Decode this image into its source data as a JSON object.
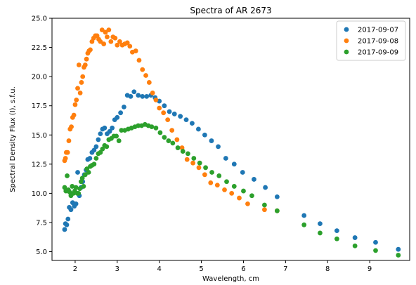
{
  "chart_data": {
    "type": "scatter",
    "title": "Spectra of AR 2673",
    "xlabel": "Wavelength, cm",
    "ylabel": "Spectral Density Flux (I), s.f.u.",
    "xlim": [
      1.45,
      9.95
    ],
    "ylim": [
      4.25,
      25.0
    ],
    "xticks": [
      2,
      3,
      4,
      5,
      6,
      7,
      8,
      9
    ],
    "yticks": [
      5.0,
      7.5,
      10.0,
      12.5,
      15.0,
      17.5,
      20.0,
      22.5,
      25.0
    ],
    "ytick_labels": [
      "5.0",
      "7.5",
      "10.0",
      "12.5",
      "15.0",
      "17.5",
      "20.0",
      "22.5",
      "25.0"
    ],
    "xtick_labels": [
      "2",
      "3",
      "4",
      "5",
      "6",
      "7",
      "8",
      "9"
    ],
    "grid": false,
    "legend_position": "top-right",
    "series": [
      {
        "name": "2017-09-07",
        "color": "#1f77b4",
        "x": [
          1.75,
          1.77,
          1.8,
          1.83,
          1.86,
          1.9,
          1.94,
          1.98,
          2.02,
          2.06,
          2.1,
          2.14,
          2.18,
          2.22,
          2.26,
          2.3,
          2.35,
          2.4,
          2.45,
          2.5,
          2.55,
          2.6,
          2.65,
          2.7,
          2.76,
          2.82,
          2.88,
          2.94,
          3.0,
          3.08,
          3.16,
          3.24,
          3.32,
          3.4,
          3.5,
          3.6,
          3.7,
          3.8,
          3.9,
          4.0,
          4.12,
          4.24,
          4.36,
          4.5,
          4.64,
          4.78,
          4.93,
          5.08,
          5.24,
          5.4,
          5.58,
          5.78,
          5.98,
          6.25,
          6.52,
          6.8,
          7.44,
          7.82,
          8.22,
          8.65,
          9.14,
          9.68
        ],
        "y": [
          6.9,
          7.4,
          7.3,
          7.8,
          8.8,
          8.6,
          9.2,
          8.9,
          9.1,
          11.8,
          9.8,
          10.5,
          11.0,
          11.6,
          12.0,
          12.9,
          13.0,
          13.5,
          13.7,
          14.0,
          14.6,
          15.1,
          15.5,
          15.6,
          15.1,
          15.3,
          15.6,
          16.3,
          16.5,
          16.9,
          17.4,
          18.4,
          18.3,
          18.7,
          18.4,
          18.3,
          18.3,
          18.4,
          18.2,
          17.9,
          17.5,
          17.0,
          16.8,
          16.6,
          16.3,
          16.0,
          15.5,
          15.0,
          14.5,
          14.0,
          13.0,
          12.5,
          11.8,
          11.2,
          10.5,
          9.7,
          8.1,
          7.4,
          6.8,
          6.2,
          5.8,
          5.2
        ]
      },
      {
        "name": "2017-09-08",
        "color": "#ff7f0e",
        "x": [
          1.75,
          1.77,
          1.79,
          1.82,
          1.85,
          1.88,
          1.91,
          1.94,
          1.97,
          2.0,
          2.03,
          2.06,
          2.09,
          2.12,
          2.15,
          2.18,
          2.21,
          2.24,
          2.27,
          2.3,
          2.33,
          2.36,
          2.4,
          2.44,
          2.48,
          2.52,
          2.56,
          2.6,
          2.64,
          2.68,
          2.72,
          2.76,
          2.8,
          2.85,
          2.9,
          2.95,
          3.0,
          3.06,
          3.12,
          3.18,
          3.24,
          3.3,
          3.36,
          3.44,
          3.52,
          3.6,
          3.68,
          3.76,
          3.84,
          3.92,
          4.0,
          4.1,
          4.2,
          4.3,
          4.42,
          4.54,
          4.66,
          4.8,
          4.94,
          5.08,
          5.22,
          5.38,
          5.55,
          5.72,
          5.9,
          6.1,
          6.5,
          6.8
        ],
        "y": [
          12.8,
          13.0,
          13.5,
          13.5,
          14.5,
          15.5,
          15.7,
          16.5,
          16.7,
          17.6,
          18.0,
          19.0,
          21.0,
          18.6,
          19.5,
          20.0,
          20.8,
          21.0,
          21.5,
          22.0,
          22.2,
          22.3,
          23.0,
          23.3,
          23.5,
          23.5,
          23.2,
          23.0,
          24.0,
          22.8,
          23.8,
          23.4,
          24.0,
          23.0,
          23.4,
          23.3,
          22.7,
          23.0,
          22.7,
          22.8,
          22.9,
          22.6,
          22.1,
          22.2,
          21.4,
          20.6,
          20.1,
          19.5,
          18.6,
          18.0,
          17.3,
          16.9,
          16.3,
          15.4,
          14.6,
          13.9,
          12.9,
          12.6,
          12.2,
          11.6,
          10.9,
          10.7,
          10.3,
          10.0,
          9.6,
          9.1,
          8.6,
          8.5
        ]
      },
      {
        "name": "2017-09-09",
        "color": "#2ca02c",
        "x": [
          1.75,
          1.78,
          1.81,
          1.84,
          1.87,
          1.9,
          1.93,
          1.96,
          1.99,
          2.02,
          2.05,
          2.08,
          2.11,
          2.14,
          2.17,
          2.2,
          2.24,
          2.28,
          2.32,
          2.36,
          2.4,
          2.45,
          2.5,
          2.55,
          2.6,
          2.65,
          2.7,
          2.75,
          2.8,
          2.86,
          2.92,
          2.98,
          3.04,
          3.1,
          3.18,
          3.26,
          3.34,
          3.42,
          3.5,
          3.58,
          3.66,
          3.74,
          3.82,
          3.92,
          4.02,
          4.12,
          4.22,
          4.32,
          4.44,
          4.56,
          4.68,
          4.82,
          4.96,
          5.1,
          5.25,
          5.42,
          5.6,
          5.78,
          6.0,
          6.2,
          6.5,
          6.8,
          7.44,
          7.82,
          8.22,
          8.65,
          9.14,
          9.68
        ],
        "y": [
          10.5,
          10.2,
          11.5,
          10.3,
          10.1,
          9.8,
          10.6,
          10.0,
          10.2,
          10.5,
          10.0,
          10.0,
          10.4,
          11.0,
          11.3,
          10.6,
          11.6,
          12.1,
          11.8,
          12.3,
          12.4,
          12.5,
          13.0,
          13.4,
          13.5,
          13.8,
          14.1,
          14.0,
          14.6,
          14.7,
          14.9,
          14.9,
          14.5,
          15.4,
          15.4,
          15.5,
          15.6,
          15.7,
          15.8,
          15.8,
          15.9,
          15.8,
          15.7,
          15.6,
          15.2,
          14.8,
          14.5,
          14.3,
          13.9,
          13.6,
          13.4,
          13.0,
          12.6,
          12.2,
          11.8,
          11.5,
          11.0,
          10.6,
          10.2,
          9.8,
          9.0,
          8.5,
          7.3,
          6.6,
          6.1,
          5.5,
          5.1,
          4.7
        ]
      }
    ]
  }
}
